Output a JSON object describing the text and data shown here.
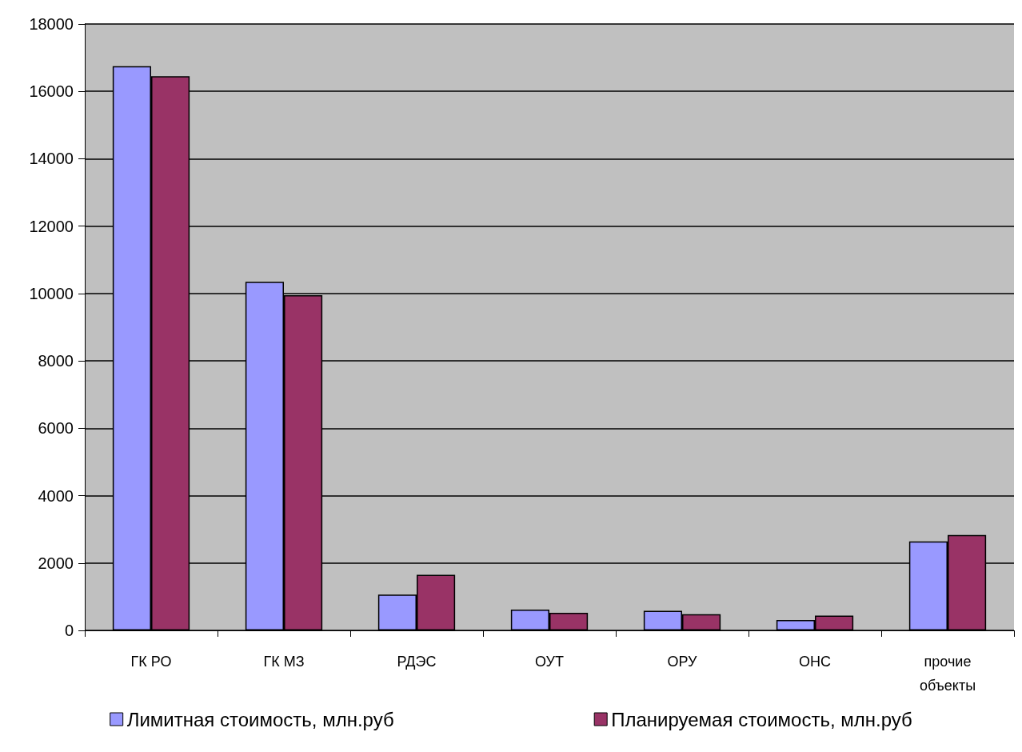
{
  "chart_data": {
    "type": "bar",
    "categories": [
      "ГК РО",
      "ГК МЗ",
      "РДЭС",
      "ОУТ",
      "ОРУ",
      "ОНС",
      "прочие\nобъекты"
    ],
    "series": [
      {
        "name": "Лимитная стоимость, млн.руб",
        "color": "#9999ff",
        "values": [
          16750,
          10350,
          1060,
          620,
          580,
          310,
          2640
        ]
      },
      {
        "name": "Планируемая стоимость, млн.руб",
        "color": "#993366",
        "values": [
          16450,
          9950,
          1650,
          520,
          480,
          440,
          2830
        ]
      }
    ],
    "ylim": [
      0,
      18000
    ],
    "yticks": [
      0,
      2000,
      4000,
      6000,
      8000,
      10000,
      12000,
      14000,
      16000,
      18000
    ],
    "grid": "y",
    "legend": "bottom"
  }
}
